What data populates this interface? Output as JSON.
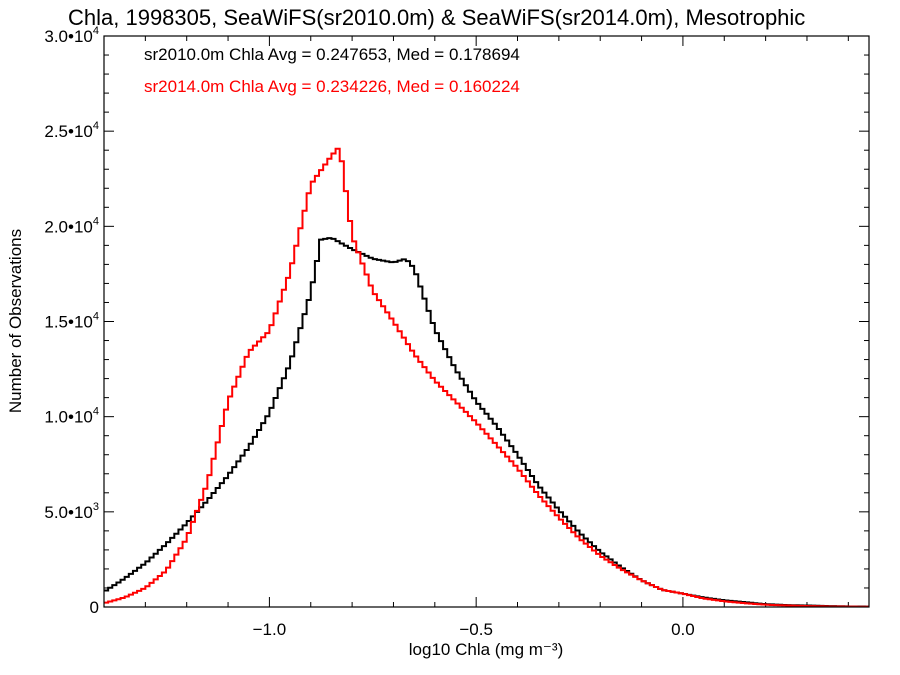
{
  "chart_data": {
    "type": "line",
    "title": "Chla, 1998305, SeaWiFS(sr2010.0m) & SeaWiFS(sr2014.0m), Mesotrophic",
    "xlabel": "log10 Chla (mg m⁻³)",
    "ylabel": "Number of Observations",
    "xlim": [
      -1.4,
      0.45
    ],
    "ylim": [
      0,
      30000
    ],
    "x_ticks": [
      {
        "value": -1.0,
        "label": "−1.0"
      },
      {
        "value": -0.5,
        "label": "−0.5"
      },
      {
        "value": 0.0,
        "label": "0.0"
      }
    ],
    "y_ticks": [
      {
        "value": 0,
        "mant": "0",
        "exp": ""
      },
      {
        "value": 5000,
        "mant": "5.0•10",
        "exp": "3"
      },
      {
        "value": 10000,
        "mant": "1.0•10",
        "exp": "4"
      },
      {
        "value": 15000,
        "mant": "1.5•10",
        "exp": "4"
      },
      {
        "value": 20000,
        "mant": "2.0•10",
        "exp": "4"
      },
      {
        "value": 25000,
        "mant": "2.5•10",
        "exp": "4"
      },
      {
        "value": 30000,
        "mant": "3.0•10",
        "exp": "4"
      }
    ],
    "annotations": [
      {
        "text": "sr2010.0m Chla Avg = 0.247653, Med = 0.178694",
        "color": "#000000"
      },
      {
        "text": "sr2014.0m Chla Avg = 0.234226, Med = 0.160224",
        "color": "#ff0000"
      }
    ],
    "series": [
      {
        "color": "#000000",
        "x": [
          -1.4,
          -1.35,
          -1.3,
          -1.25,
          -1.2,
          -1.15,
          -1.1,
          -1.05,
          -1.0,
          -0.95,
          -0.9,
          -0.875,
          -0.85,
          -0.8,
          -0.75,
          -0.7,
          -0.67,
          -0.65,
          -0.6,
          -0.55,
          -0.5,
          -0.45,
          -0.4,
          -0.35,
          -0.3,
          -0.25,
          -0.2,
          -0.15,
          -0.1,
          -0.05,
          0.0,
          0.05,
          0.1,
          0.15,
          0.2,
          0.25,
          0.3,
          0.35,
          0.4,
          0.45
        ],
        "y": [
          800,
          1500,
          2300,
          3300,
          4400,
          5600,
          6900,
          8400,
          10200,
          12800,
          16500,
          19300,
          19400,
          18800,
          18300,
          18100,
          18300,
          17800,
          14600,
          12500,
          10800,
          9500,
          8000,
          6400,
          5100,
          3900,
          2900,
          2100,
          1400,
          900,
          700,
          500,
          350,
          250,
          150,
          100,
          80,
          50,
          30,
          20
        ]
      },
      {
        "color": "#ff0000",
        "x": [
          -1.4,
          -1.35,
          -1.3,
          -1.25,
          -1.2,
          -1.15,
          -1.1,
          -1.05,
          -1.0,
          -0.95,
          -0.9,
          -0.85,
          -0.83,
          -0.8,
          -0.75,
          -0.7,
          -0.65,
          -0.6,
          -0.55,
          -0.5,
          -0.45,
          -0.4,
          -0.35,
          -0.3,
          -0.25,
          -0.2,
          -0.15,
          -0.1,
          -0.05,
          0.0,
          0.05,
          0.1,
          0.15,
          0.2,
          0.25,
          0.3,
          0.35,
          0.4,
          0.45
        ],
        "y": [
          200,
          500,
          1000,
          1900,
          3600,
          6500,
          10800,
          13400,
          14500,
          17600,
          22200,
          23700,
          24200,
          19500,
          16600,
          15000,
          13300,
          11900,
          10800,
          9700,
          8500,
          7300,
          5900,
          4700,
          3600,
          2700,
          2000,
          1400,
          900,
          700,
          450,
          300,
          200,
          120,
          80,
          50,
          30,
          20,
          10
        ]
      }
    ]
  }
}
